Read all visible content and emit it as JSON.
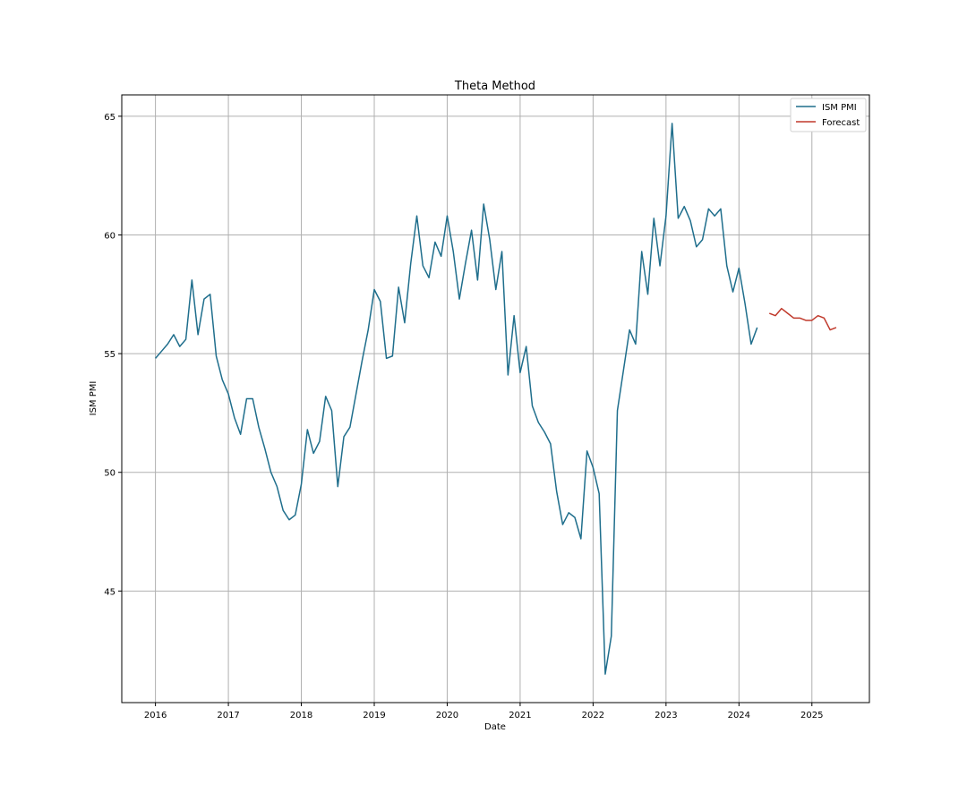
{
  "chart_data": {
    "type": "line",
    "title": "Theta Method",
    "xlabel": "Date",
    "ylabel": "ISM PMI",
    "x_ticks": [
      "2016",
      "2017",
      "2018",
      "2019",
      "2020",
      "2021",
      "2022",
      "2023",
      "2024",
      "2025"
    ],
    "y_ticks": [
      45,
      50,
      55,
      60,
      65
    ],
    "xlim": [
      "2015-07-15",
      "2025-10-15"
    ],
    "ylim": [
      40.3,
      65.9
    ],
    "grid": true,
    "legend_position": "top-right",
    "colors": {
      "ISM PMI": "#1f6e8c",
      "Forecast": "#c0392b",
      "grid": "#b0b0b0"
    },
    "series": [
      {
        "name": "ISM PMI",
        "x": [
          "2016-01",
          "2016-02",
          "2016-03",
          "2016-04",
          "2016-05",
          "2016-06",
          "2016-07",
          "2016-08",
          "2016-09",
          "2016-10",
          "2016-11",
          "2016-12",
          "2017-01",
          "2017-02",
          "2017-03",
          "2017-04",
          "2017-05",
          "2017-06",
          "2017-07",
          "2017-08",
          "2017-09",
          "2017-10",
          "2017-11",
          "2017-12",
          "2018-01",
          "2018-02",
          "2018-03",
          "2018-04",
          "2018-05",
          "2018-06",
          "2018-07",
          "2018-08",
          "2018-09",
          "2018-10",
          "2018-11",
          "2018-12",
          "2019-01",
          "2019-02",
          "2019-03",
          "2019-04",
          "2019-05",
          "2019-06",
          "2019-07",
          "2019-08",
          "2019-09",
          "2019-10",
          "2019-11",
          "2019-12",
          "2020-01",
          "2020-02",
          "2020-03",
          "2020-04",
          "2020-05",
          "2020-06",
          "2020-07",
          "2020-08",
          "2020-09",
          "2020-10",
          "2020-11",
          "2020-12",
          "2021-01",
          "2021-02",
          "2021-03",
          "2021-04",
          "2021-05",
          "2021-06",
          "2021-07",
          "2021-08",
          "2021-09",
          "2021-10",
          "2021-11",
          "2021-12",
          "2022-01",
          "2022-02",
          "2022-03",
          "2022-04",
          "2022-05",
          "2022-06",
          "2022-07",
          "2022-08",
          "2022-09",
          "2022-10",
          "2022-11",
          "2022-12",
          "2023-01",
          "2023-02",
          "2023-03",
          "2023-04",
          "2023-05",
          "2023-06",
          "2023-07",
          "2023-08",
          "2023-09",
          "2023-10",
          "2023-11",
          "2023-12",
          "2024-01",
          "2024-02",
          "2024-03",
          "2024-04"
        ],
        "values": [
          54.8,
          55.1,
          55.4,
          55.8,
          55.3,
          55.6,
          58.1,
          55.8,
          57.3,
          57.5,
          54.9,
          53.9,
          53.3,
          52.3,
          51.6,
          53.1,
          53.1,
          51.9,
          51.0,
          50.0,
          49.4,
          48.4,
          48.0,
          48.2,
          49.5,
          51.8,
          50.8,
          51.3,
          53.2,
          52.6,
          49.4,
          51.5,
          51.9,
          53.3,
          54.7,
          56.0,
          57.7,
          57.2,
          54.8,
          54.9,
          57.8,
          56.3,
          58.8,
          60.8,
          58.7,
          58.2,
          59.7,
          59.1,
          60.8,
          59.3,
          57.3,
          58.8,
          60.2,
          58.1,
          61.3,
          59.8,
          57.7,
          59.3,
          54.1,
          56.6,
          54.2,
          55.3,
          52.8,
          52.1,
          51.7,
          51.2,
          49.2,
          47.8,
          48.3,
          48.1,
          47.2,
          50.9,
          50.2,
          49.1,
          41.5,
          43.1,
          52.6,
          54.3,
          56.0,
          55.4,
          59.3,
          57.5,
          60.7,
          58.7,
          60.8,
          64.7,
          60.7,
          61.2,
          60.6,
          59.5,
          59.8,
          61.1,
          60.8,
          61.1,
          58.7,
          57.6,
          58.6,
          57.1,
          55.4,
          56.1
        ]
      },
      {
        "name": "Forecast",
        "x": [
          "2024-06",
          "2024-07",
          "2024-08",
          "2024-09",
          "2024-10",
          "2024-11",
          "2024-12",
          "2025-01",
          "2025-02",
          "2025-03",
          "2025-04",
          "2025-05"
        ],
        "values": [
          56.7,
          56.6,
          56.9,
          56.7,
          56.5,
          56.5,
          56.4,
          56.4,
          56.6,
          56.5,
          56.0,
          56.1
        ]
      }
    ]
  }
}
